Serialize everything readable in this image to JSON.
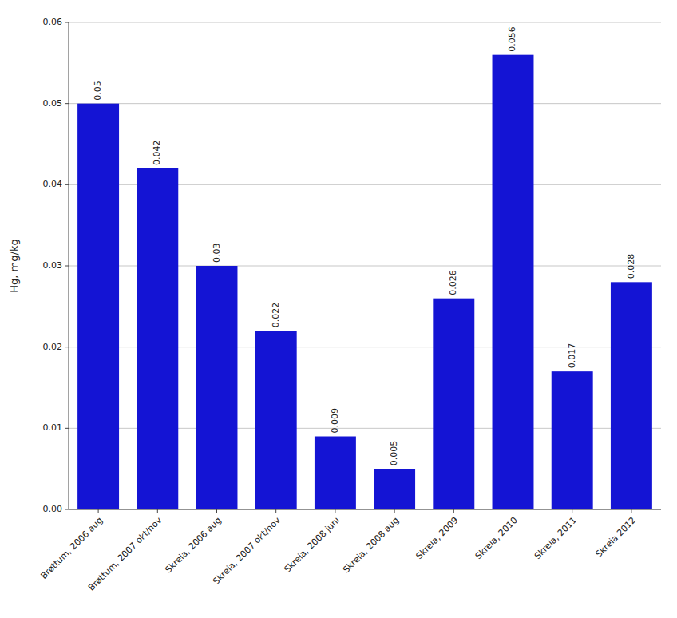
{
  "chart_data": {
    "type": "bar",
    "categories": [
      "Brøttum, 2006 aug",
      "Brøttum, 2007 okt/nov",
      "Skreia, 2006 aug",
      "Skreia, 2007 okt/nov",
      "Skreia, 2008 juni",
      "Skreia, 2008 aug",
      "Skreia, 2009",
      "Skreia, 2010",
      "Skreia, 2011",
      "Skreia 2012"
    ],
    "values": [
      0.05,
      0.042,
      0.03,
      0.022,
      0.009,
      0.005,
      0.026,
      0.056,
      0.017,
      0.028
    ],
    "color": "#1414d4",
    "ylabel": "Hg, mg/kg",
    "ylim": [
      0,
      0.06
    ],
    "yticks": [
      {
        "value": 0,
        "label": "0.00"
      },
      0.01,
      0.02,
      0.03,
      0.04,
      0.05,
      0.06
    ],
    "grid": true,
    "data_labels": true
  }
}
